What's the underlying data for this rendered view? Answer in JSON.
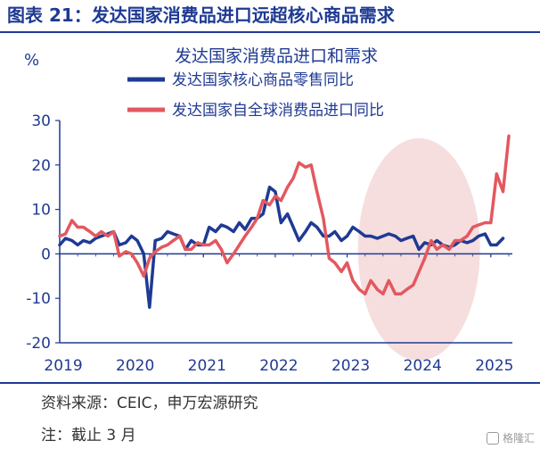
{
  "figure": {
    "title": "图表 21：发达国家消费品进口远超核心商品需求",
    "source": "资料来源：CEIC，申万宏源研究",
    "note": "注：截止 3 月",
    "watermark": "格隆汇"
  },
  "colors": {
    "accent": "#1f3a93",
    "series_core": "#1f3a93",
    "series_import": "#e3585f",
    "highlight_circle": "#f3d3d3"
  },
  "chart_data": {
    "type": "line",
    "title": "发达国家消费品进口和需求",
    "ylabel": "%",
    "xlabel": "",
    "ylim": [
      -20,
      30
    ],
    "yticks": [
      30,
      20,
      10,
      0,
      -10,
      -20
    ],
    "x_tick_labels": [
      "2019",
      "2020",
      "2021",
      "2022",
      "2023",
      "2024",
      "2025"
    ],
    "xlim": [
      2019.0,
      2025.3
    ],
    "legend_position": "top",
    "grid": false,
    "series": [
      {
        "name": "发达国家核心商品零售同比",
        "x": [
          2019.0,
          2019.08,
          2019.17,
          2019.25,
          2019.33,
          2019.42,
          2019.5,
          2019.58,
          2019.67,
          2019.75,
          2019.83,
          2019.92,
          2020.0,
          2020.08,
          2020.17,
          2020.25,
          2020.33,
          2020.42,
          2020.5,
          2020.58,
          2020.67,
          2020.75,
          2020.83,
          2020.92,
          2021.0,
          2021.08,
          2021.17,
          2021.25,
          2021.33,
          2021.42,
          2021.5,
          2021.58,
          2021.67,
          2021.75,
          2021.83,
          2021.92,
          2022.0,
          2022.08,
          2022.17,
          2022.25,
          2022.33,
          2022.42,
          2022.5,
          2022.58,
          2022.67,
          2022.75,
          2022.83,
          2022.92,
          2023.0,
          2023.08,
          2023.17,
          2023.25,
          2023.33,
          2023.42,
          2023.5,
          2023.58,
          2023.67,
          2023.75,
          2023.83,
          2023.92,
          2024.0,
          2024.08,
          2024.17,
          2024.25,
          2024.33,
          2024.42,
          2024.5,
          2024.58,
          2024.67,
          2024.75,
          2024.83,
          2024.92,
          2025.0,
          2025.08,
          2025.17
        ],
        "values": [
          2,
          3.5,
          3,
          2,
          3,
          2.5,
          3.5,
          4,
          4.5,
          5,
          2,
          2.5,
          4,
          3,
          0,
          -12,
          3,
          3.5,
          5,
          4.5,
          4,
          1,
          3,
          2,
          2,
          6,
          5,
          6.5,
          6,
          5,
          7,
          5.5,
          8,
          8,
          9,
          15,
          14,
          7,
          9,
          6,
          3,
          5,
          7,
          6,
          4,
          4,
          5,
          3,
          4,
          6,
          5,
          4,
          4,
          3.5,
          4,
          4.5,
          4,
          3,
          3.5,
          4,
          1,
          2.5,
          2,
          3,
          2,
          1.5,
          2,
          3,
          2.5,
          3,
          4,
          4.5,
          2,
          2,
          3.5
        ]
      },
      {
        "name": "发达国家自全球消费品进口同比",
        "x": [
          2019.0,
          2019.08,
          2019.17,
          2019.25,
          2019.33,
          2019.42,
          2019.5,
          2019.58,
          2019.67,
          2019.75,
          2019.83,
          2019.92,
          2020.0,
          2020.08,
          2020.17,
          2020.25,
          2020.33,
          2020.42,
          2020.5,
          2020.58,
          2020.67,
          2020.75,
          2020.83,
          2020.92,
          2021.0,
          2021.08,
          2021.17,
          2021.25,
          2021.33,
          2021.42,
          2021.5,
          2021.58,
          2021.67,
          2021.75,
          2021.83,
          2021.92,
          2022.0,
          2022.08,
          2022.17,
          2022.25,
          2022.33,
          2022.42,
          2022.5,
          2022.58,
          2022.67,
          2022.75,
          2022.83,
          2022.92,
          2023.0,
          2023.08,
          2023.17,
          2023.25,
          2023.33,
          2023.42,
          2023.5,
          2023.58,
          2023.67,
          2023.75,
          2023.83,
          2023.92,
          2024.0,
          2024.08,
          2024.17,
          2024.25,
          2024.33,
          2024.42,
          2024.5,
          2024.58,
          2024.67,
          2024.75,
          2024.83,
          2024.92,
          2025.0,
          2025.08,
          2025.17,
          2025.25
        ],
        "values": [
          4,
          4.5,
          7.5,
          6,
          6,
          5,
          4,
          5,
          4,
          5,
          -0.5,
          0.5,
          0,
          -2,
          -5,
          -1,
          0.5,
          1.5,
          2,
          3,
          4,
          1,
          1,
          2.5,
          2,
          2,
          3,
          1,
          -2,
          0,
          2,
          4,
          6,
          8,
          12,
          11,
          13,
          12,
          15,
          17,
          20.5,
          19.5,
          20,
          14,
          8,
          -1,
          -2,
          -4,
          -2,
          -6,
          -8,
          -9,
          -6,
          -8,
          -9,
          -6,
          -9,
          -9,
          -8,
          -7,
          -4,
          -1,
          3,
          1,
          2,
          1,
          3,
          3,
          4,
          6,
          6.5,
          7,
          7,
          18,
          14,
          26.5
        ]
      }
    ],
    "annotations": [
      {
        "type": "circle_highlight",
        "center_x": 2024.0,
        "center_y": 1,
        "radius_x": 0.85,
        "radius_y": 25
      }
    ]
  }
}
